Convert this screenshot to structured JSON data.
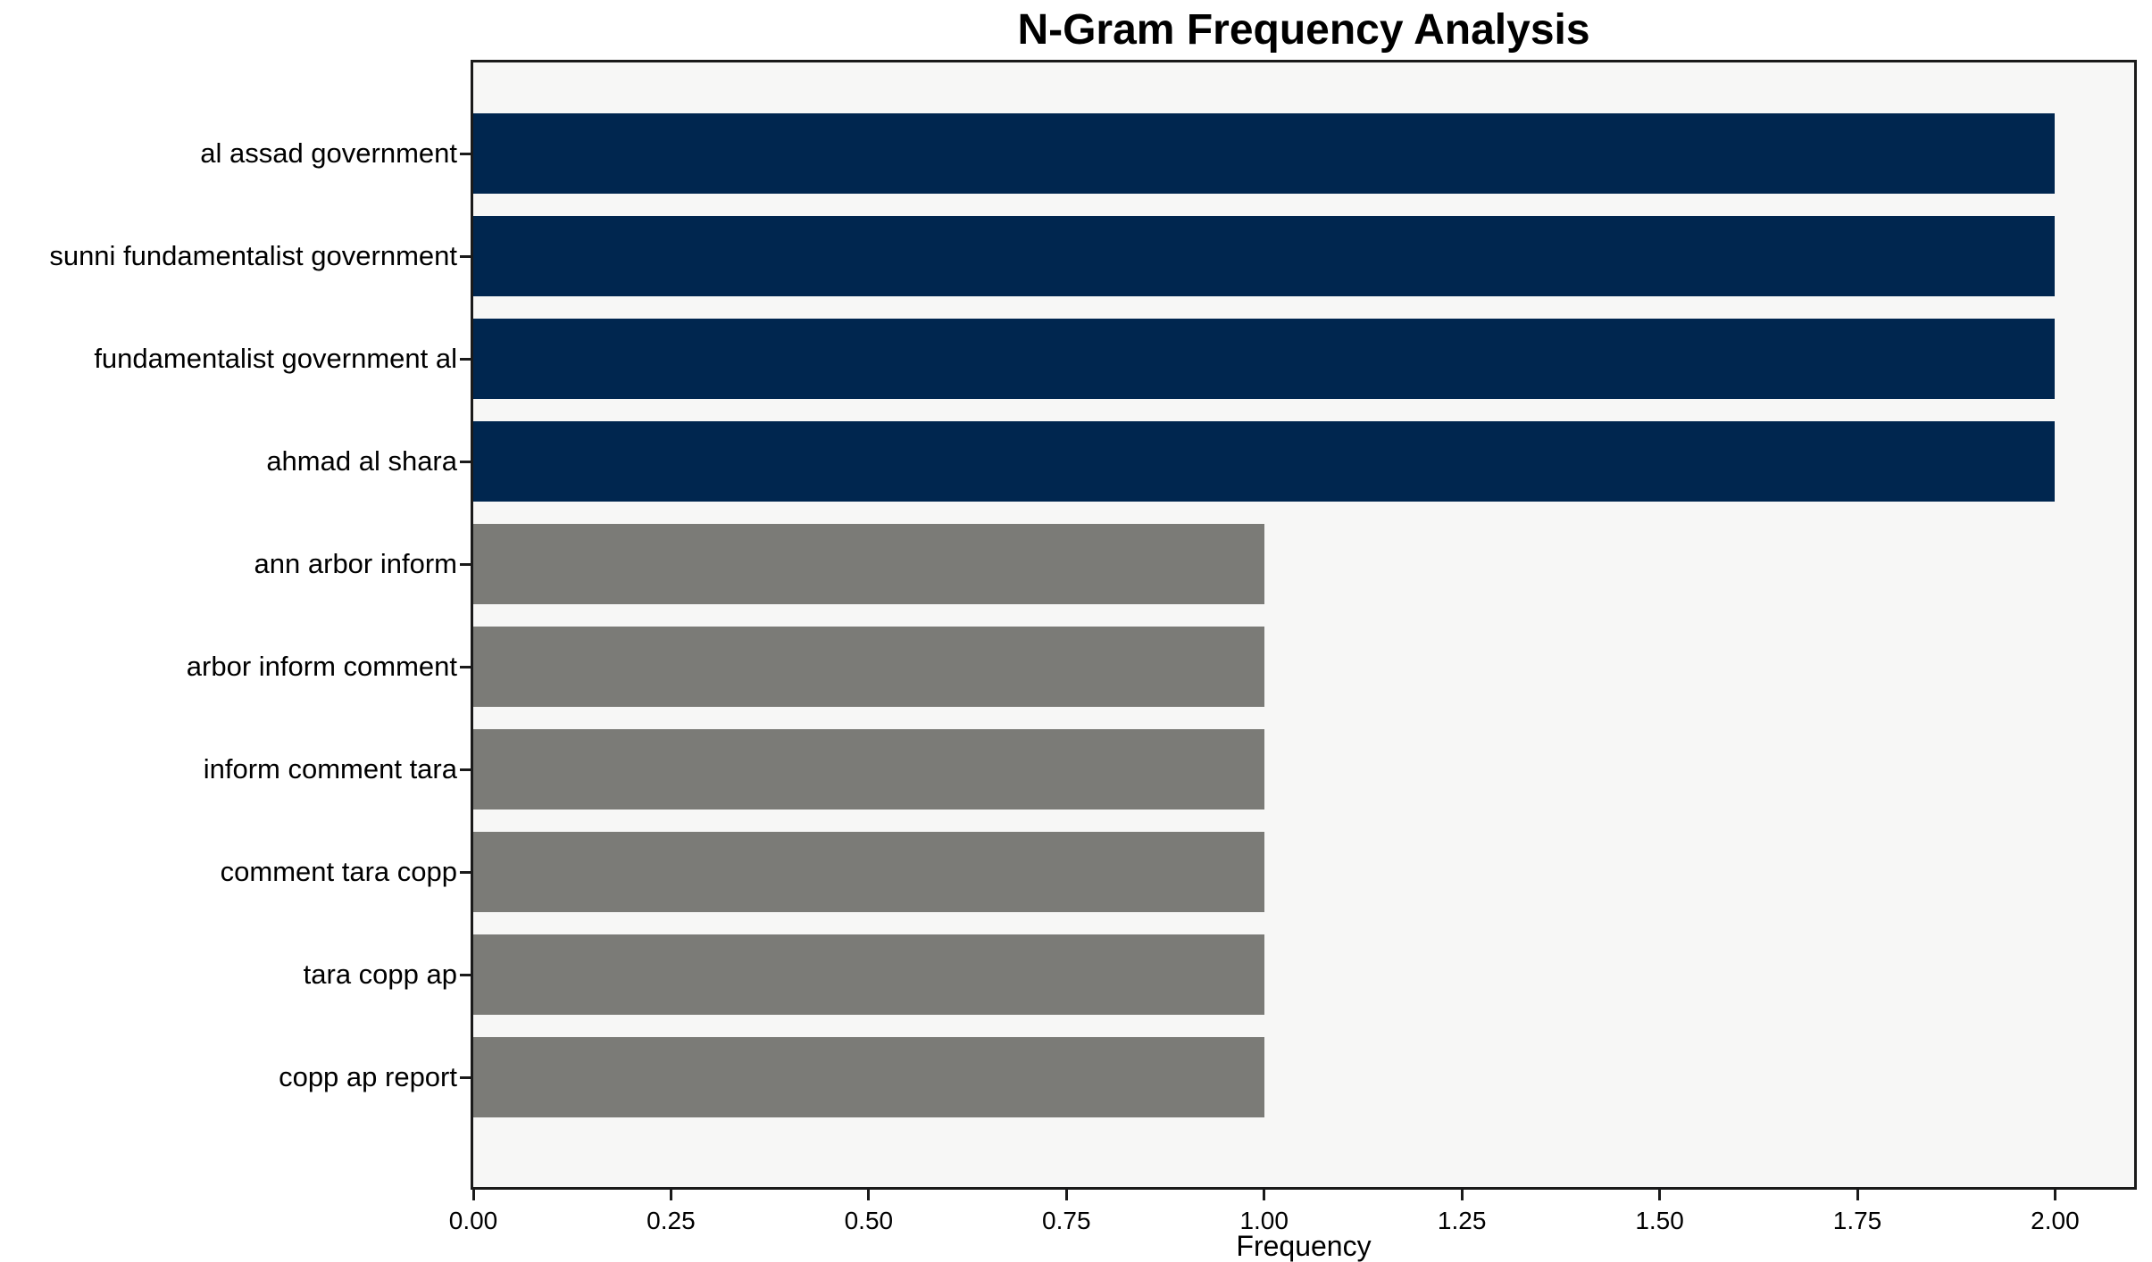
{
  "title": "N-Gram Frequency Analysis",
  "chart_data": {
    "type": "bar",
    "orientation": "horizontal",
    "title": "N-Gram Frequency Analysis",
    "xlabel": "Frequency",
    "ylabel": "",
    "categories": [
      "al assad government",
      "sunni fundamentalist government",
      "fundamentalist government al",
      "ahmad al shara",
      "ann arbor inform",
      "arbor inform comment",
      "inform comment tara",
      "comment tara copp",
      "tara copp ap",
      "copp ap report"
    ],
    "values": [
      2,
      2,
      2,
      2,
      1,
      1,
      1,
      1,
      1,
      1
    ],
    "bar_colors": [
      "#00264f",
      "#00264f",
      "#00264f",
      "#00264f",
      "#7b7b77",
      "#7b7b77",
      "#7b7b77",
      "#7b7b77",
      "#7b7b77",
      "#7b7b77"
    ],
    "xlim": [
      0,
      2.1
    ],
    "xtick_values": [
      0,
      0.25,
      0.5,
      0.75,
      1.0,
      1.25,
      1.5,
      1.75,
      2.0
    ],
    "xtick_labels": [
      "0.00",
      "0.25",
      "0.50",
      "0.75",
      "1.00",
      "1.25",
      "1.50",
      "1.75",
      "2.00"
    ],
    "grid": false,
    "legend": null,
    "colors": {
      "highlight_bar": "#00264f",
      "default_bar": "#7b7b77",
      "plot_background": "#f7f7f6",
      "figure_background": "#ffffff",
      "axis_line": "#1a1a1a",
      "text": "#000000"
    }
  }
}
